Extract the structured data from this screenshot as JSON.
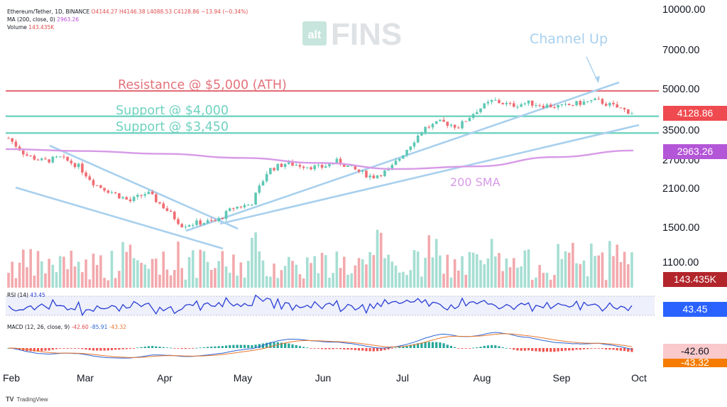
{
  "header": {
    "symbol_line": "Ethereum/Tether, 1D, BINANCE",
    "ohlc": "O4144.27  H4146.38  L4088.53  C4128.86  −13.94 (−0.34%)",
    "ma_label": "MA (200, close, 0)",
    "ma_value": "2963.26",
    "volume_label": "Volume",
    "volume_value": "143.435K"
  },
  "watermark": {
    "alt": "alt",
    "fins": "FINS"
  },
  "annotations": {
    "resistance": "Resistance @ $5,000 (ATH)",
    "support_4000": "Support @ $4,000",
    "support_3450": "Support @ $3,450",
    "channel_up": "Channel Up",
    "sma": "200 SMA"
  },
  "badges": {
    "price": "4128.86",
    "ma": "2963.26",
    "volume": "143.435K",
    "rsi": "43.45",
    "macd": "-42.60",
    "signal": "-43.32"
  },
  "rsi_header": {
    "label": "RSI (14)",
    "value": "43.45"
  },
  "macd_header": {
    "label": "MACD (12, 26, close, 9)",
    "hist": "-42.60",
    "macd": "-85.91",
    "signal": "-43.32"
  },
  "footer": {
    "brand": "TradingView"
  },
  "colors": {
    "up": "#5ec8b4",
    "down": "#ef6c72",
    "resistance": "#e3727b",
    "support": "#6fd2c0",
    "channel": "#a8d0ee",
    "sma": "#d79ae6",
    "rsi": "#2a3fd4",
    "macd": "#2a64d4",
    "signal": "#e8772e"
  },
  "chart_data": {
    "type": "candlestick",
    "title": "Ethereum/Tether, 1D, BINANCE",
    "y_ticks": [
      "10000.00",
      "7000.00",
      "5000.00",
      "3500.00",
      "2700.00",
      "2100.00",
      "1500.00",
      "1100.00"
    ],
    "x_ticks": [
      "Feb",
      "Mar",
      "Apr",
      "May",
      "Jun",
      "Jul",
      "Aug",
      "Sep",
      "Oct"
    ],
    "y_scale": "log",
    "levels": [
      {
        "name": "resistance",
        "value": 5000
      },
      {
        "name": "support_4000",
        "value": 4000
      },
      {
        "name": "support_3450",
        "value": 3450
      }
    ],
    "close_path": [
      [
        "Feb",
        3300
      ],
      [
        "Feb",
        2850
      ],
      [
        "Feb",
        2700
      ],
      [
        "Feb",
        2780
      ],
      [
        "Mar",
        2600
      ],
      [
        "Mar",
        2200
      ],
      [
        "Mar",
        2050
      ],
      [
        "Mar",
        1900
      ],
      [
        "Mar",
        2050
      ],
      [
        "Apr",
        1800
      ],
      [
        "Apr",
        1550
      ],
      [
        "Apr",
        1580
      ],
      [
        "Apr",
        1600
      ],
      [
        "May",
        1800
      ],
      [
        "May",
        1850
      ],
      [
        "May",
        2500
      ],
      [
        "May",
        2650
      ],
      [
        "Jun",
        2600
      ],
      [
        "Jun",
        2550
      ],
      [
        "Jun",
        2700
      ],
      [
        "Jun",
        2500
      ],
      [
        "Jun",
        2350
      ],
      [
        "Jul",
        2500
      ],
      [
        "Jul",
        3000
      ],
      [
        "Jul",
        3600
      ],
      [
        "Jul",
        3800
      ],
      [
        "Aug",
        3650
      ],
      [
        "Aug",
        4200
      ],
      [
        "Aug",
        4600
      ],
      [
        "Aug",
        4400
      ],
      [
        "Aug",
        4500
      ],
      [
        "Sep",
        4400
      ],
      [
        "Sep",
        4350
      ],
      [
        "Sep",
        4500
      ],
      [
        "Sep",
        4600
      ],
      [
        "Sep",
        4350
      ],
      [
        "Sep",
        4129
      ]
    ],
    "ma200_path": [
      [
        "Feb",
        3000
      ],
      [
        "Mar",
        2950
      ],
      [
        "Apr",
        2880
      ],
      [
        "May",
        2780
      ],
      [
        "Jun",
        2660
      ],
      [
        "Jul",
        2520
      ],
      [
        "Aug",
        2580
      ],
      [
        "Sep",
        2800
      ],
      [
        "Sep",
        2963
      ]
    ],
    "last_close": 4128.86,
    "last_ma200": 2963.26,
    "last_volume": "143.435K",
    "rsi_last": 43.45,
    "macd_hist_last": -42.6,
    "macd_signal_last": -43.32,
    "macd_line_header": -85.91
  }
}
